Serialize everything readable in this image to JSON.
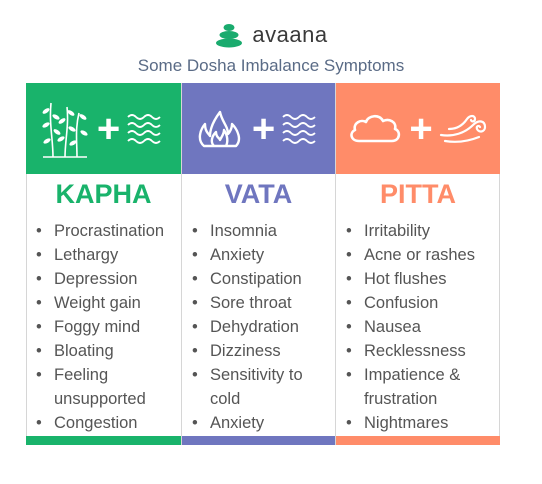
{
  "brand": {
    "name": "avaana",
    "logo_icon": "stacked-stones-icon",
    "logo_color": "#1aab6e"
  },
  "title": "Some Dosha Imbalance Symptoms",
  "columns": [
    {
      "name": "KAPHA",
      "color": "#19b36b",
      "banner_icons": [
        "plant-icon",
        "plus-icon",
        "water-waves-icon"
      ],
      "symptoms": [
        "Procrastination",
        "Lethargy",
        "Depression",
        "Weight gain",
        "Foggy mind",
        "Bloating",
        "Feeling unsupported",
        "Congestion"
      ]
    },
    {
      "name": "VATA",
      "color": "#6f76bf",
      "banner_icons": [
        "fire-icon",
        "plus-icon",
        "water-waves-icon"
      ],
      "symptoms": [
        "Insomnia",
        "Anxiety",
        "Constipation",
        "Sore throat",
        "Dehydration",
        "Dizziness",
        "Sensitivity to cold",
        "Anxiety"
      ]
    },
    {
      "name": "PITTA",
      "color": "#ff8c69",
      "banner_icons": [
        "cloud-icon",
        "plus-icon",
        "wind-icon"
      ],
      "symptoms": [
        "Irritability",
        "Acne or rashes",
        "Hot flushes",
        "Confusion",
        "Nausea",
        "Recklessness",
        "Impatience & frustration",
        "Nightmares"
      ]
    }
  ]
}
